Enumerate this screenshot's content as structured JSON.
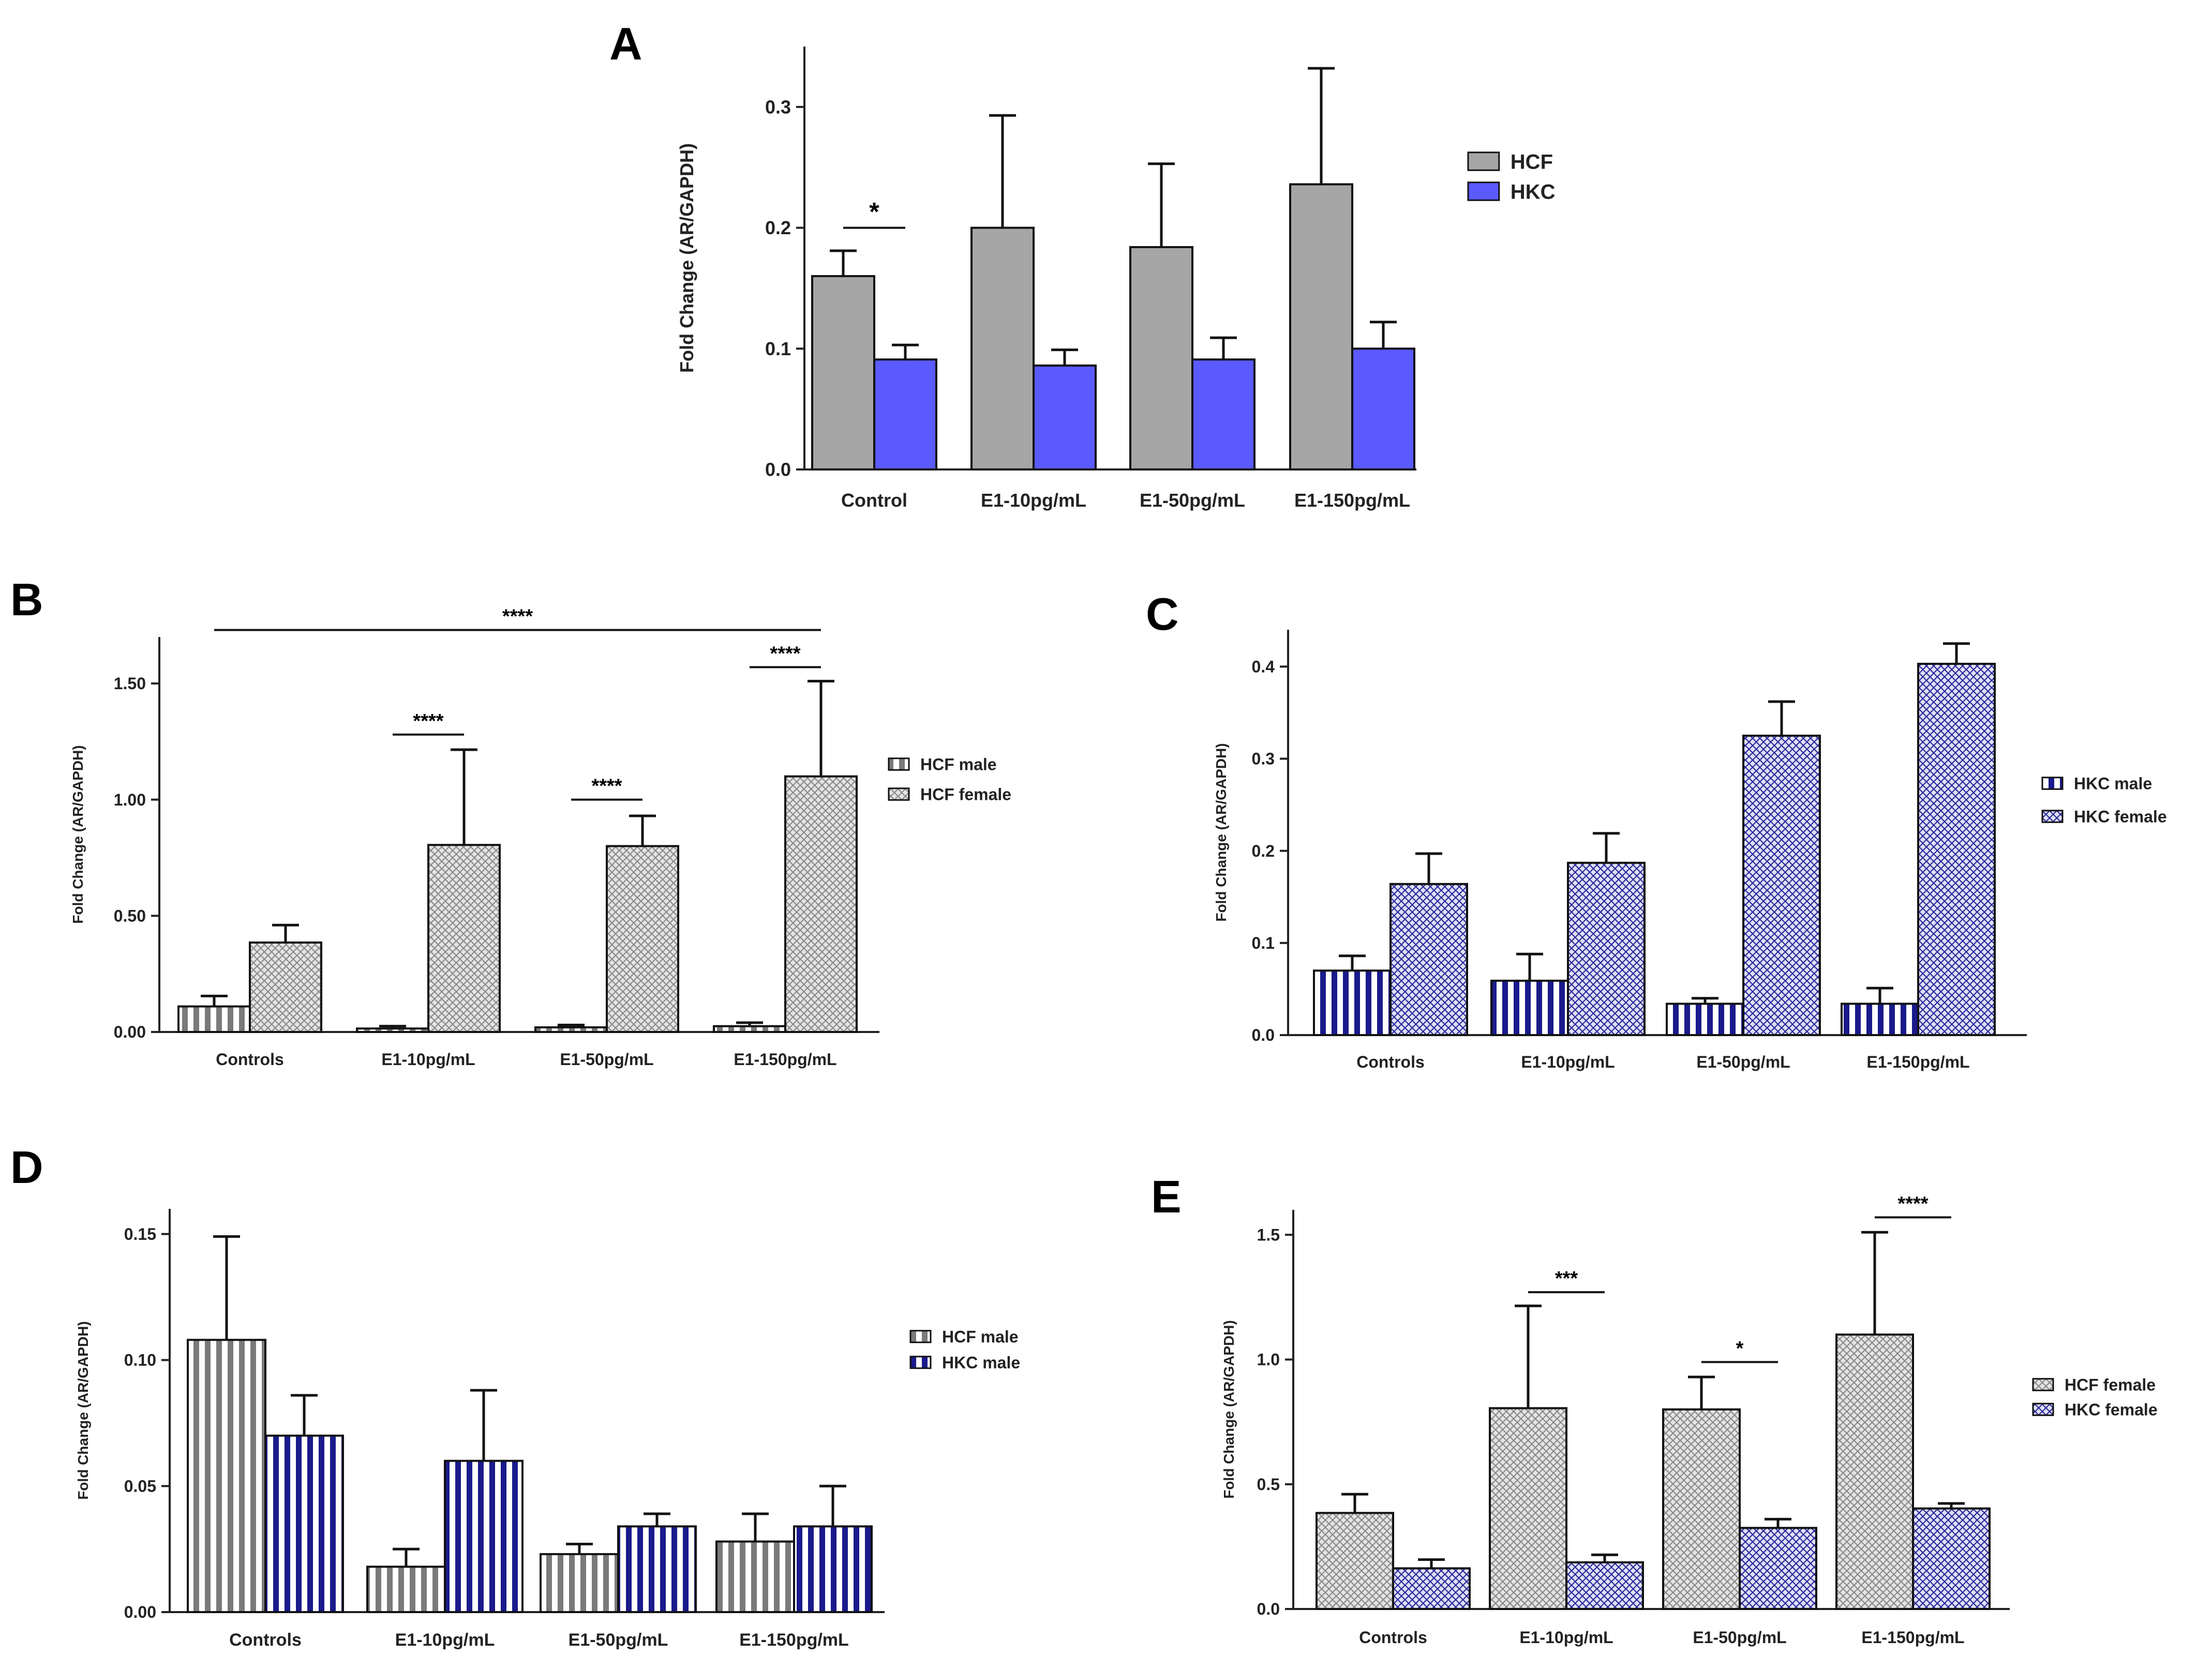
{
  "colors": {
    "hcf_solid": "#a6a6a6",
    "hkc_solid": "#5a5aff",
    "hcf_pattern": "#7a7a7a",
    "hkc_pattern": "#1a1a8c",
    "pattern_bg": "#ffffff",
    "hcf_female_bg": "#e4e4e4",
    "hkc_female_bg": "#e0e0f6"
  },
  "chart_data": [
    {
      "id": "A",
      "label": "A",
      "type": "bar",
      "ylabel": "Fold Change (AR/GAPDH)",
      "ylim": [
        0,
        0.35
      ],
      "yticks": [
        "0.0",
        "0.1",
        "0.2",
        "0.3"
      ],
      "ytick_values": [
        0,
        0.1,
        0.2,
        0.3
      ],
      "categories": [
        "Control",
        "E1-10pg/mL",
        "E1-50pg/mL",
        "E1-150pg/mL"
      ],
      "series": [
        {
          "name": "HCF",
          "style": "hcf-solid",
          "values": [
            0.16,
            0.2,
            0.184,
            0.236
          ],
          "errors": [
            0.021,
            0.093,
            0.069,
            0.096
          ]
        },
        {
          "name": "HKC",
          "style": "hkc-solid",
          "values": [
            0.091,
            0.086,
            0.091,
            0.1
          ],
          "errors": [
            0.012,
            0.013,
            0.018,
            0.022
          ]
        }
      ],
      "annotations": [
        {
          "text": "*",
          "from": [
            0,
            0
          ],
          "to": [
            0,
            1
          ],
          "y": 0.2
        }
      ]
    },
    {
      "id": "B",
      "label": "B",
      "type": "bar",
      "ylabel": "Fold Change (AR/GAPDH)",
      "ylim": [
        0,
        1.7
      ],
      "yticks": [
        "0.00",
        "0.50",
        "1.00",
        "1.50"
      ],
      "ytick_values": [
        0,
        0.5,
        1.0,
        1.5
      ],
      "categories": [
        "Controls",
        "E1-10pg/mL",
        "E1-50pg/mL",
        "E1-150pg/mL"
      ],
      "series": [
        {
          "name": "HCF male",
          "style": "hcf-stripe",
          "values": [
            0.11,
            0.015,
            0.02,
            0.025
          ],
          "errors": [
            0.045,
            0.01,
            0.01,
            0.015
          ]
        },
        {
          "name": "HCF female",
          "style": "hcf-dot",
          "values": [
            0.385,
            0.805,
            0.8,
            1.1
          ],
          "errors": [
            0.075,
            0.41,
            0.13,
            0.41
          ]
        }
      ],
      "annotations": [
        {
          "text": "****",
          "from": [
            0,
            0
          ],
          "to": [
            3,
            1
          ],
          "y": 1.73
        },
        {
          "text": "****",
          "from": [
            1,
            0
          ],
          "to": [
            1,
            1
          ],
          "y": 1.28
        },
        {
          "text": "****",
          "from": [
            2,
            0
          ],
          "to": [
            2,
            1
          ],
          "y": 1.0
        },
        {
          "text": "****",
          "from": [
            3,
            0
          ],
          "to": [
            3,
            1
          ],
          "y": 1.57
        }
      ]
    },
    {
      "id": "C",
      "label": "C",
      "type": "bar",
      "ylabel": "Fold Change (AR/GAPDH)",
      "ylim": [
        0,
        0.44
      ],
      "yticks": [
        "0.0",
        "0.1",
        "0.2",
        "0.3",
        "0.4"
      ],
      "ytick_values": [
        0,
        0.1,
        0.2,
        0.3,
        0.4
      ],
      "categories": [
        "Controls",
        "E1-10pg/mL",
        "E1-50pg/mL",
        "E1-150pg/mL"
      ],
      "series": [
        {
          "name": "HKC male",
          "style": "hkc-stripe",
          "values": [
            0.07,
            0.059,
            0.034,
            0.034
          ],
          "errors": [
            0.016,
            0.029,
            0.006,
            0.017
          ]
        },
        {
          "name": "HKC female",
          "style": "hkc-dot",
          "values": [
            0.164,
            0.187,
            0.325,
            0.403
          ],
          "errors": [
            0.033,
            0.032,
            0.037,
            0.022
          ]
        }
      ],
      "annotations": []
    },
    {
      "id": "D",
      "label": "D",
      "type": "bar",
      "ylabel": "Fold Change (AR/GAPDH)",
      "ylim": [
        0,
        0.16
      ],
      "yticks": [
        "0.00",
        "0.05",
        "0.10",
        "0.15"
      ],
      "ytick_values": [
        0,
        0.05,
        0.1,
        0.15
      ],
      "categories": [
        "Controls",
        "E1-10pg/mL",
        "E1-50pg/mL",
        "E1-150pg/mL"
      ],
      "series": [
        {
          "name": "HCF male",
          "style": "hcf-stripe",
          "values": [
            0.108,
            0.018,
            0.023,
            0.028
          ],
          "errors": [
            0.041,
            0.007,
            0.004,
            0.011
          ]
        },
        {
          "name": "HKC male",
          "style": "hkc-stripe",
          "values": [
            0.07,
            0.06,
            0.034,
            0.034
          ],
          "errors": [
            0.016,
            0.028,
            0.005,
            0.016
          ]
        }
      ],
      "annotations": []
    },
    {
      "id": "E",
      "label": "E",
      "type": "bar",
      "ylabel": "Fold Change (AR/GAPDH)",
      "ylim": [
        0,
        1.6
      ],
      "yticks": [
        "0.0",
        "0.5",
        "1.0",
        "1.5"
      ],
      "ytick_values": [
        0,
        0.5,
        1.0,
        1.5
      ],
      "categories": [
        "Controls",
        "E1-10pg/mL",
        "E1-50pg/mL",
        "E1-150pg/mL"
      ],
      "series": [
        {
          "name": "HCF female",
          "style": "hcf-dot",
          "values": [
            0.385,
            0.805,
            0.8,
            1.1
          ],
          "errors": [
            0.075,
            0.41,
            0.13,
            0.41
          ]
        },
        {
          "name": "HKC female",
          "style": "hkc-dot",
          "values": [
            0.163,
            0.187,
            0.325,
            0.403
          ],
          "errors": [
            0.035,
            0.03,
            0.035,
            0.02
          ]
        }
      ],
      "annotations": [
        {
          "text": "***",
          "from": [
            1,
            0
          ],
          "to": [
            1,
            1
          ],
          "y": 1.27
        },
        {
          "text": "*",
          "from": [
            2,
            0
          ],
          "to": [
            2,
            1
          ],
          "y": 0.99
        },
        {
          "text": "****",
          "from": [
            3,
            0
          ],
          "to": [
            3,
            1
          ],
          "y": 1.57
        }
      ]
    }
  ]
}
